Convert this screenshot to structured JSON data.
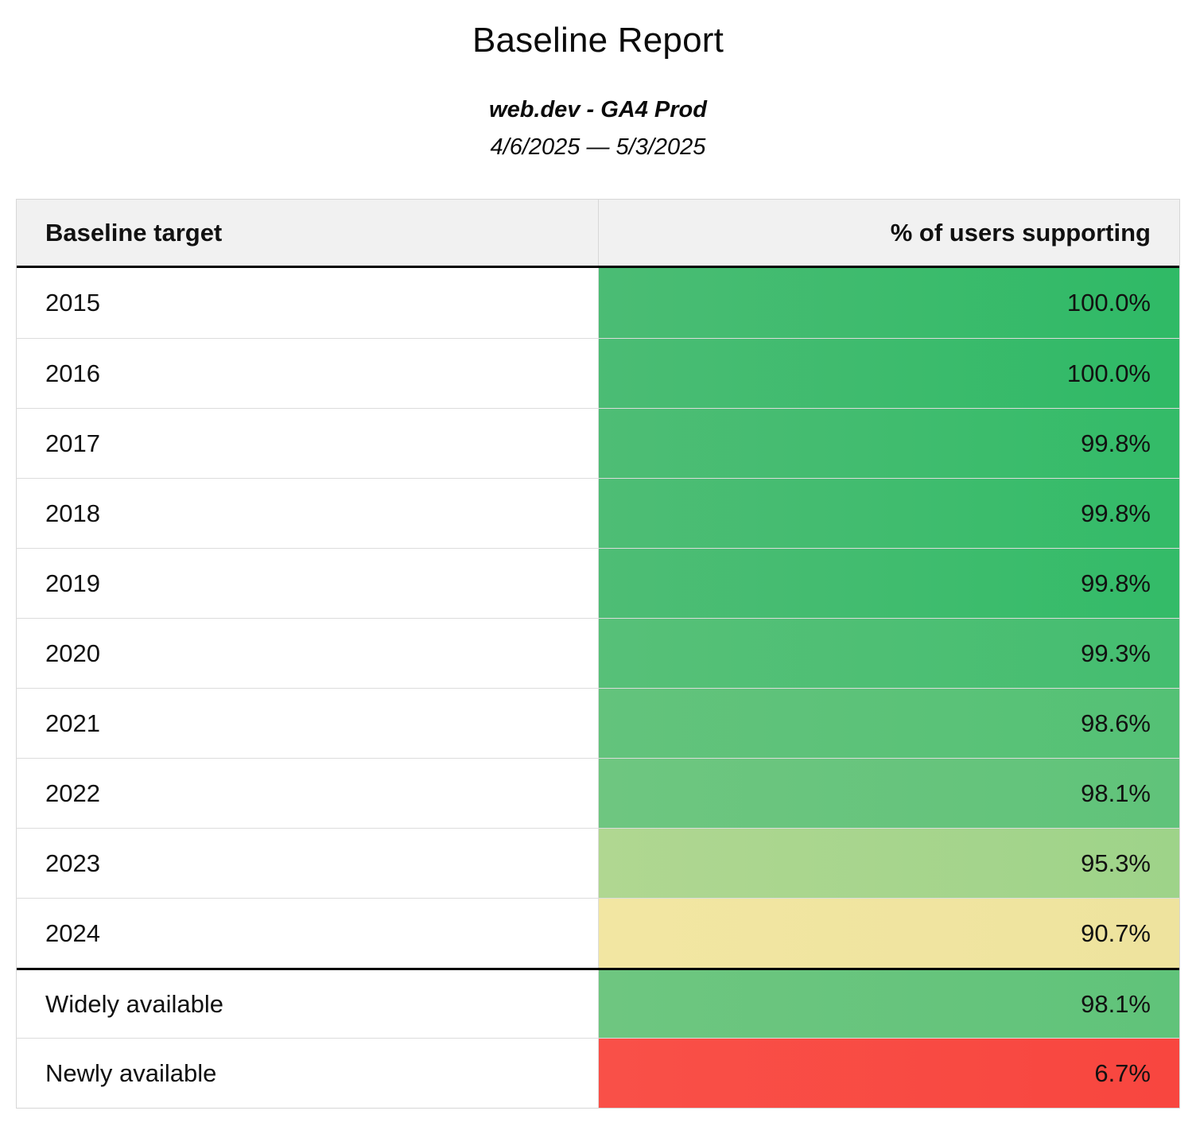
{
  "header": {
    "title": "Baseline Report",
    "source": "web.dev - GA4 Prod",
    "date_range": "4/6/2025 — 5/3/2025"
  },
  "table": {
    "columns": [
      "Baseline target",
      "% of users supporting"
    ],
    "rows": [
      {
        "target": "2015",
        "percent": "100.0%",
        "color_left": "#4bbc74",
        "color_right": "#2fba66"
      },
      {
        "target": "2016",
        "percent": "100.0%",
        "color_left": "#4bbc74",
        "color_right": "#2fba66"
      },
      {
        "target": "2017",
        "percent": "99.8%",
        "color_left": "#4ebd75",
        "color_right": "#33bb68"
      },
      {
        "target": "2018",
        "percent": "99.8%",
        "color_left": "#4ebd75",
        "color_right": "#33bb68"
      },
      {
        "target": "2019",
        "percent": "99.8%",
        "color_left": "#4ebd75",
        "color_right": "#33bb68"
      },
      {
        "target": "2020",
        "percent": "99.3%",
        "color_left": "#57c078",
        "color_right": "#44be70"
      },
      {
        "target": "2021",
        "percent": "98.6%",
        "color_left": "#63c37c",
        "color_right": "#54c175"
      },
      {
        "target": "2022",
        "percent": "98.1%",
        "color_left": "#6ec680",
        "color_right": "#60c37a"
      },
      {
        "target": "2023",
        "percent": "95.3%",
        "color_left": "#b0d791",
        "color_right": "#9ed389"
      },
      {
        "target": "2024",
        "percent": "90.7%",
        "color_left": "#f2e6a2",
        "color_right": "#eee39e"
      },
      {
        "target": "Widely available",
        "percent": "98.1%",
        "color_left": "#6ec680",
        "color_right": "#60c37a"
      },
      {
        "target": "Newly available",
        "percent": "6.7%",
        "color_left": "#f95048",
        "color_right": "#f8463f"
      }
    ]
  },
  "chart_data": {
    "type": "table",
    "title": "Baseline Report",
    "subtitle": "web.dev - GA4 Prod",
    "date_range": "4/6/2025 — 5/3/2025",
    "columns": [
      "Baseline target",
      "% of users supporting"
    ],
    "categories": [
      "2015",
      "2016",
      "2017",
      "2018",
      "2019",
      "2020",
      "2021",
      "2022",
      "2023",
      "2024",
      "Widely available",
      "Newly available"
    ],
    "values": [
      100.0,
      100.0,
      99.8,
      99.8,
      99.8,
      99.3,
      98.6,
      98.1,
      95.3,
      90.7,
      98.1,
      6.7
    ],
    "value_unit": "%",
    "color_scale": "red-yellow-green",
    "colors": {
      "high_green": "#3bbb6c",
      "mid_yellow": "#f0e5a0",
      "low_red": "#f94840",
      "header_bg": "#f1f1f1"
    }
  }
}
